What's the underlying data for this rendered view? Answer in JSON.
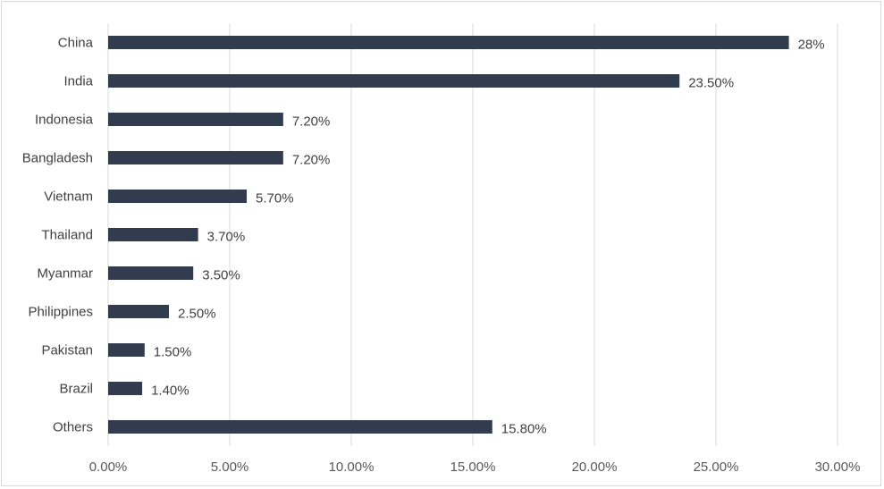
{
  "chart_data": {
    "type": "bar",
    "orientation": "horizontal",
    "categories": [
      "China",
      "India",
      "Indonesia",
      "Bangladesh",
      "Vietnam",
      "Thailand",
      "Myanmar",
      "Philippines",
      "Pakistan",
      "Brazil",
      "Others"
    ],
    "values": [
      28.0,
      23.5,
      7.2,
      7.2,
      5.7,
      3.7,
      3.5,
      2.5,
      1.5,
      1.4,
      15.8
    ],
    "data_labels": [
      "28%",
      "23.50%",
      "7.20%",
      "7.20%",
      "5.70%",
      "3.70%",
      "3.50%",
      "2.50%",
      "1.50%",
      "1.40%",
      "15.80%"
    ],
    "x_ticks": [
      "0.00%",
      "5.00%",
      "10.00%",
      "15.00%",
      "20.00%",
      "25.00%",
      "30.00%"
    ],
    "xlim": [
      0,
      30
    ],
    "grid": "vertical",
    "legend": "none",
    "colors": {
      "bar": "#323c4f",
      "grid": "#d9d9d9",
      "text": "#404040"
    }
  }
}
